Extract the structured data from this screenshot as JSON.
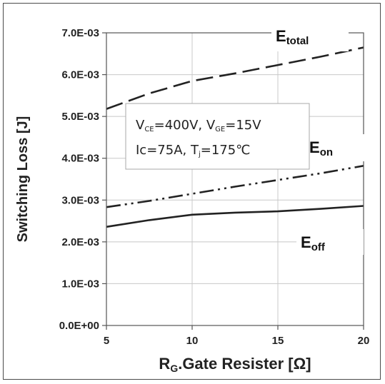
{
  "chart_data": {
    "type": "line",
    "xlabel": {
      "main": "R",
      "sub": "G",
      "rest": ".Gate Resister [Ω]"
    },
    "ylabel": "Switching Loss [J]",
    "xlim": [
      5,
      20
    ],
    "ylim": [
      0,
      0.007
    ],
    "x_ticks": [
      5,
      10,
      15,
      20
    ],
    "x_tick_labels": [
      "5",
      "10",
      "15",
      "20"
    ],
    "y_ticks": [
      0,
      0.001,
      0.002,
      0.003,
      0.004,
      0.005,
      0.006,
      0.007
    ],
    "y_tick_labels": [
      "0.0E+00",
      "1.0E-03",
      "2.0E-03",
      "3.0E-03",
      "4.0E-03",
      "5.0E-03",
      "6.0E-03",
      "7.0E-03"
    ],
    "grid": true,
    "series": [
      {
        "label_main": "E",
        "label_sub": "total",
        "line_style": "dashed",
        "color": "#222222",
        "x": [
          5,
          7.5,
          10,
          12.5,
          15,
          17.5,
          20
        ],
        "y": [
          0.00518,
          0.00555,
          0.00585,
          0.00603,
          0.00623,
          0.00643,
          0.00665
        ]
      },
      {
        "label_main": "E",
        "label_sub": "on",
        "line_style": "dash-dot-dot",
        "color": "#222222",
        "x": [
          5,
          7.5,
          10,
          12.5,
          15,
          17.5,
          20
        ],
        "y": [
          0.00283,
          0.00298,
          0.00315,
          0.00332,
          0.00348,
          0.00364,
          0.00382
        ]
      },
      {
        "label_main": "E",
        "label_sub": "off",
        "line_style": "solid",
        "color": "#222222",
        "x": [
          5,
          7.5,
          10,
          12.5,
          15,
          17.5,
          20
        ],
        "y": [
          0.00236,
          0.00252,
          0.00265,
          0.0027,
          0.00273,
          0.00279,
          0.00286
        ]
      }
    ],
    "annotation": {
      "line1": [
        {
          "t": "V"
        },
        {
          "t": "CE",
          "sub": true
        },
        {
          "t": "=400V, V"
        },
        {
          "t": "GE",
          "sub": true
        },
        {
          "t": "=15V"
        }
      ],
      "line2": [
        {
          "t": "Ic=75A,  T"
        },
        {
          "t": "j",
          "sub": true
        },
        {
          "t": "=175℃"
        }
      ]
    }
  }
}
